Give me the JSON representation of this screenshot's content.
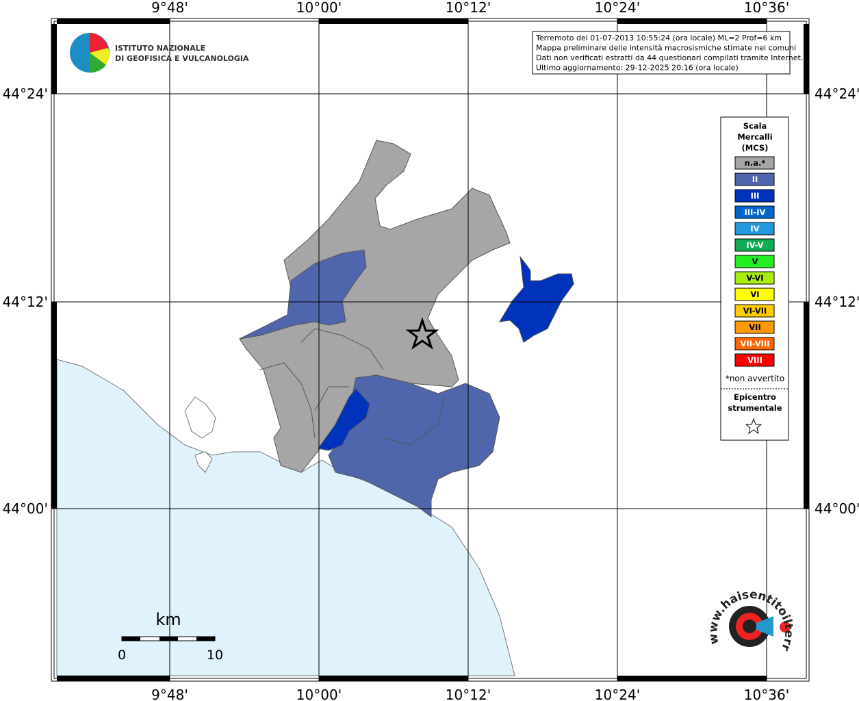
{
  "header": {
    "institute": [
      "ISTITUTO NAZIONALE",
      "DI GEOFISICA E VULCANOLOGIA"
    ]
  },
  "info_box": {
    "lines": [
      "Terremoto del 01-07-2013 10:55:24 (ora locale) ML=2 Prof=6 km",
      "Mappa preliminare delle intensità macrosismiche stimate nei comuni",
      "Dati non verificati estratti da 44 questionari compilati tramite Internet.",
      "Ultimo aggiornamento: 29-12-2025 20:16 (ora locale)"
    ]
  },
  "grid": {
    "lon_labels": [
      "9°48'",
      "10°00'",
      "10°12'",
      "10°24'",
      "10°36'"
    ],
    "lat_labels": [
      "44°24'",
      "44°12'",
      "44°00'"
    ]
  },
  "legend": {
    "title": [
      "Scala",
      "Mercalli",
      "(MCS)"
    ],
    "items": [
      {
        "label": "n.a.*",
        "color": "#a6a6a6"
      },
      {
        "label": "II",
        "color": "#4f66ad"
      },
      {
        "label": "III",
        "color": "#0033bb"
      },
      {
        "label": "III-IV",
        "color": "#0066cc"
      },
      {
        "label": "IV",
        "color": "#2299dd"
      },
      {
        "label": "IV-V",
        "color": "#11aa55"
      },
      {
        "label": "V",
        "color": "#22ee22"
      },
      {
        "label": "V-VI",
        "color": "#aaee11"
      },
      {
        "label": "VI",
        "color": "#ffff00"
      },
      {
        "label": "VI-VII",
        "color": "#ffcc00"
      },
      {
        "label": "VII",
        "color": "#ff9900"
      },
      {
        "label": "VII-VIII",
        "color": "#ff6600"
      },
      {
        "label": "VIII",
        "color": "#ff0000"
      }
    ],
    "note": "*non avvertito",
    "epicenter_label": [
      "Epicentro",
      "strumentale"
    ]
  },
  "scale_bar": {
    "unit": "km",
    "ticks": [
      "0",
      "10"
    ]
  },
  "site_logo": "www.haisentitoilterremoto.it"
}
